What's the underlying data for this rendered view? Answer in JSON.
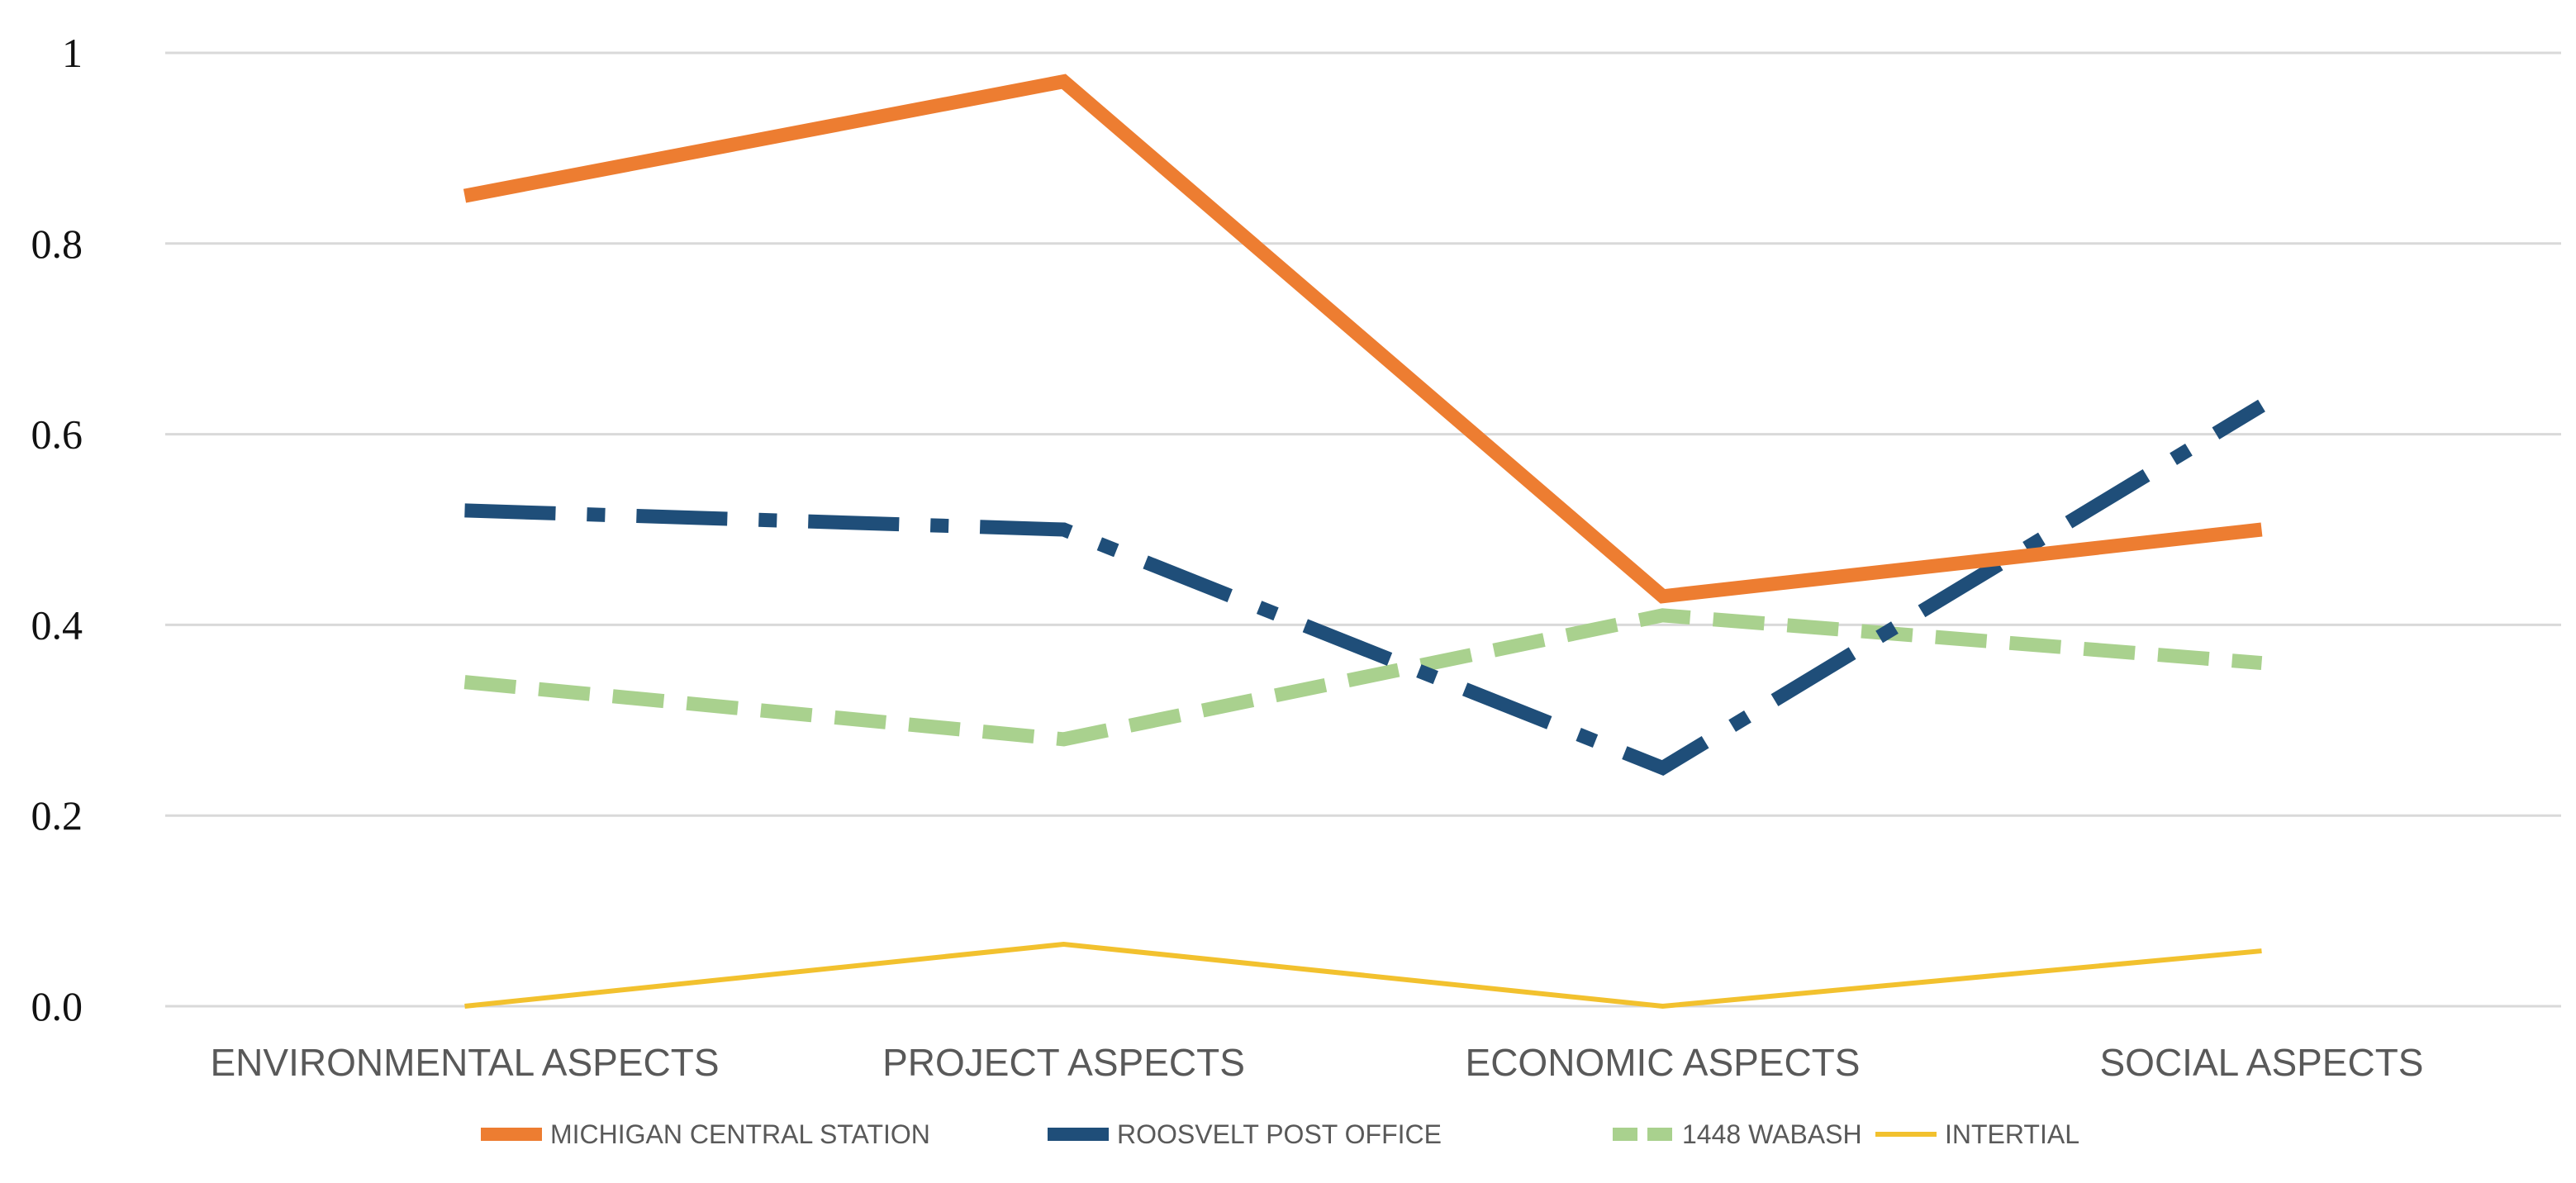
{
  "chart_data": {
    "type": "line",
    "title": "",
    "xlabel": "",
    "ylabel": "",
    "ylim": [
      0,
      1
    ],
    "categories": [
      "ENVIRONMENTAL ASPECTS",
      "PROJECT ASPECTS",
      "ECONOMIC ASPECTS",
      "SOCIAL ASPECTS"
    ],
    "yticks": [
      {
        "value": 0,
        "label": "0.0"
      },
      {
        "value": 0.2,
        "label": "0.2"
      },
      {
        "value": 0.4,
        "label": "0.4"
      },
      {
        "value": 0.6,
        "label": "0.6"
      },
      {
        "value": 0.8,
        "label": "0.8"
      },
      {
        "value": 1,
        "label": "1"
      }
    ],
    "grid": true,
    "legend_position": "bottom",
    "series": [
      {
        "name": "MICHIGAN CENTRAL STATION",
        "values": [
          0.85,
          0.97,
          0.43,
          0.5
        ],
        "color": "#ED7D31",
        "style": "solid",
        "weight": "heavy"
      },
      {
        "name": "ROOSVELT POST OFFICE",
        "values": [
          0.52,
          0.5,
          0.25,
          0.63
        ],
        "color": "#1F4E79",
        "style": "dashdot",
        "weight": "heavy"
      },
      {
        "name": "1448 WABASH",
        "values": [
          0.34,
          0.28,
          0.41,
          0.36
        ],
        "color": "#A9D18E",
        "style": "dashed",
        "weight": "heavy"
      },
      {
        "name": "INTERTIAL",
        "values": [
          0.0,
          0.065,
          0.0,
          0.058
        ],
        "color": "#F2C12E",
        "style": "solid",
        "weight": "thin"
      }
    ]
  }
}
